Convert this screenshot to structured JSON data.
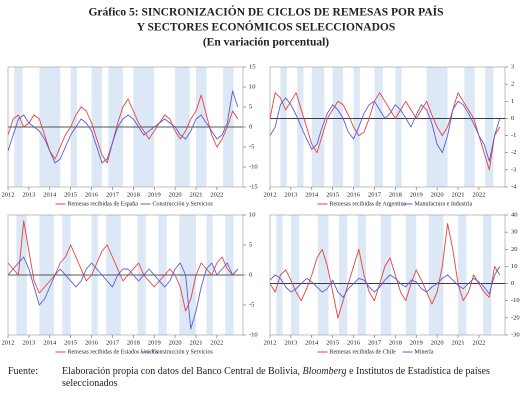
{
  "title": [
    "Gráfico 5: SINCRONIZACIÓN DE CICLOS DE REMESAS POR PAÍS",
    "Y SECTORES ECONÓMICOS SELECCIONADOS",
    "(En variación porcentual)"
  ],
  "chart_data": [
    {
      "type": "line",
      "x": [
        2012,
        2012.25,
        2012.5,
        2012.75,
        2013,
        2013.25,
        2013.5,
        2013.75,
        2014,
        2014.25,
        2014.5,
        2014.75,
        2015,
        2015.25,
        2015.5,
        2015.75,
        2016,
        2016.25,
        2016.5,
        2016.75,
        2017,
        2017.25,
        2017.5,
        2017.75,
        2018,
        2018.25,
        2018.5,
        2018.75,
        2019,
        2019.25,
        2019.5,
        2019.75,
        2020,
        2020.25,
        2020.5,
        2020.75,
        2021,
        2021.25,
        2021.5,
        2021.75,
        2022,
        2022.25,
        2022.5,
        2022.75,
        2023
      ],
      "series": [
        {
          "name": "Remesas recibidas de España",
          "color": "#e8413c",
          "values": [
            -2,
            2,
            3,
            0,
            1,
            3,
            2,
            -2,
            -6,
            -8,
            -5,
            -2,
            0,
            3,
            5,
            4,
            1,
            -3,
            -7,
            -9,
            -4,
            1,
            5,
            7,
            4,
            1,
            -1,
            -3,
            -1,
            1,
            3,
            2,
            -1,
            -3,
            -1,
            2,
            4,
            8,
            3,
            -2,
            -5,
            -3,
            0,
            4,
            2
          ]
        },
        {
          "name": "Construcción y Servicios",
          "color": "#5b5bd6",
          "values": [
            -6,
            -2,
            2,
            3,
            1,
            0,
            -1,
            -3,
            -6,
            -9,
            -8,
            -5,
            -2,
            0,
            2,
            1,
            -1,
            -5,
            -9,
            -8,
            -4,
            0,
            2,
            3,
            2,
            0,
            -2,
            -1,
            0,
            1,
            2,
            1,
            0,
            -2,
            -3,
            -1,
            2,
            3,
            1,
            -1,
            -3,
            -2,
            1,
            9,
            5
          ]
        }
      ],
      "shaded_periods": [
        [
          2012.3,
          2012.7
        ],
        [
          2013.5,
          2014.5
        ],
        [
          2015,
          2015.3
        ],
        [
          2016,
          2016.5
        ],
        [
          2016.8,
          2017.5
        ],
        [
          2018,
          2019
        ],
        [
          2020,
          2020.7
        ],
        [
          2021,
          2021.5
        ],
        [
          2022.3,
          2022.8
        ]
      ],
      "xlim": [
        2012,
        2023.25
      ],
      "xticks": [
        2012,
        2013,
        2014,
        2015,
        2016,
        2017,
        2018,
        2019,
        2020,
        2021,
        2022
      ],
      "ylim": [
        -15,
        15
      ],
      "yticks": [
        15,
        10,
        5,
        0,
        -5,
        -10,
        -15
      ]
    },
    {
      "type": "line",
      "x": [
        2012,
        2012.25,
        2012.5,
        2012.75,
        2013,
        2013.25,
        2013.5,
        2013.75,
        2014,
        2014.25,
        2014.5,
        2014.75,
        2015,
        2015.25,
        2015.5,
        2015.75,
        2016,
        2016.25,
        2016.5,
        2016.75,
        2017,
        2017.25,
        2017.5,
        2017.75,
        2018,
        2018.25,
        2018.5,
        2018.75,
        2019,
        2019.25,
        2019.5,
        2019.75,
        2020,
        2020.25,
        2020.5,
        2020.75,
        2021,
        2021.25,
        2021.5,
        2021.75,
        2022,
        2022.25,
        2022.5,
        2022.75,
        2023
      ],
      "series": [
        {
          "name": "Remesas recibidas de Argentina",
          "color": "#e8413c",
          "values": [
            0,
            1.5,
            1.2,
            0.5,
            1,
            1.5,
            0.5,
            -0.5,
            -1.5,
            -2,
            -1,
            0,
            0.5,
            1,
            0.8,
            0.2,
            -0.5,
            -1,
            -0.8,
            0,
            1,
            1.5,
            1,
            0.5,
            0,
            0.5,
            1,
            0.5,
            0,
            0.5,
            1,
            0.2,
            -0.5,
            -1,
            -0.5,
            0.5,
            1.5,
            1,
            0.5,
            0,
            -1,
            -2,
            -3,
            -1,
            -0.5
          ]
        },
        {
          "name": "Manufactura e Industria",
          "color": "#5b5bd6",
          "values": [
            -1,
            -0.5,
            0.8,
            1.2,
            0.8,
            0.2,
            -0.5,
            -1.2,
            -1.8,
            -1.5,
            -0.5,
            0.3,
            0.8,
            0.5,
            0,
            -0.8,
            -1.2,
            -0.5,
            0.3,
            0.8,
            1,
            0.5,
            0,
            0.3,
            0.8,
            0.5,
            0,
            -0.5,
            0.2,
            0.8,
            0.5,
            -0.3,
            -1.5,
            -2,
            -1,
            0.5,
            1,
            0.8,
            0.3,
            -0.3,
            -1,
            -1.5,
            -2.5,
            -1,
            0
          ]
        }
      ],
      "shaded_periods": [
        [
          2012.5,
          2012.8
        ],
        [
          2013.3,
          2013.6
        ],
        [
          2014,
          2014.6
        ],
        [
          2015,
          2015.5
        ],
        [
          2016,
          2016.3
        ],
        [
          2017,
          2017.4
        ],
        [
          2018,
          2018.3
        ],
        [
          2019.5,
          2020.5
        ],
        [
          2021.3,
          2021.8
        ],
        [
          2022.3,
          2022.7
        ]
      ],
      "xlim": [
        2012,
        2023.25
      ],
      "xticks": [
        2012,
        2013,
        2014,
        2015,
        2016,
        2017,
        2018,
        2019,
        2020,
        2021,
        2022
      ],
      "ylim": [
        -4,
        3
      ],
      "yticks": [
        3,
        2,
        1,
        0,
        -1,
        -2,
        -3,
        -4
      ]
    },
    {
      "type": "line",
      "x": [
        2012,
        2012.25,
        2012.5,
        2012.75,
        2013,
        2013.25,
        2013.5,
        2013.75,
        2014,
        2014.25,
        2014.5,
        2014.75,
        2015,
        2015.25,
        2015.5,
        2015.75,
        2016,
        2016.25,
        2016.5,
        2016.75,
        2017,
        2017.25,
        2017.5,
        2017.75,
        2018,
        2018.25,
        2018.5,
        2018.75,
        2019,
        2019.25,
        2019.5,
        2019.75,
        2020,
        2020.25,
        2020.5,
        2020.75,
        2021,
        2021.25,
        2021.5,
        2021.75,
        2022,
        2022.25,
        2022.5,
        2022.75,
        2023
      ],
      "series": [
        {
          "name": "Remesas recibidas de Estados Unidos",
          "color": "#e8413c",
          "values": [
            2,
            1,
            0,
            9,
            4,
            -1,
            -3,
            -2,
            -1,
            0,
            2,
            3,
            5,
            3,
            1,
            -1,
            0,
            2,
            4,
            5,
            3,
            1,
            -1,
            0,
            1,
            2,
            0,
            -1,
            -2,
            -1,
            0,
            1,
            0,
            -2,
            -6,
            -4,
            0,
            2,
            1,
            0,
            2,
            3,
            1,
            0,
            1
          ]
        },
        {
          "name": "Construcción y Servicios",
          "color": "#5b5bd6",
          "values": [
            0,
            1,
            2,
            3,
            1,
            -2,
            -5,
            -4,
            -2,
            0,
            1,
            0,
            -1,
            -2,
            -1,
            1,
            2,
            1,
            0,
            -1,
            -2,
            0,
            1,
            1,
            0,
            -1,
            0,
            1,
            0,
            -1,
            -2,
            -1,
            1,
            2,
            0,
            -9,
            -6,
            -2,
            1,
            2,
            0,
            1,
            2,
            0,
            1
          ]
        }
      ],
      "shaded_periods": [
        [
          2012.4,
          2012.9
        ],
        [
          2013.5,
          2014.2
        ],
        [
          2014.6,
          2015
        ],
        [
          2016,
          2016.3
        ],
        [
          2016.7,
          2017.4
        ],
        [
          2018.2,
          2018.6
        ],
        [
          2019.2,
          2019.6
        ],
        [
          2020.2,
          2021
        ],
        [
          2021.5,
          2021.8
        ],
        [
          2022.4,
          2022.8
        ]
      ],
      "xlim": [
        2012,
        2023.25
      ],
      "xticks": [
        2012,
        2013,
        2014,
        2015,
        2016,
        2017,
        2018,
        2019,
        2020,
        2021,
        2022
      ],
      "ylim": [
        -10,
        10
      ],
      "yticks": [
        10,
        5,
        0,
        -5,
        -10
      ]
    },
    {
      "type": "line",
      "x": [
        2012,
        2012.25,
        2012.5,
        2012.75,
        2013,
        2013.25,
        2013.5,
        2013.75,
        2014,
        2014.25,
        2014.5,
        2014.75,
        2015,
        2015.25,
        2015.5,
        2015.75,
        2016,
        2016.25,
        2016.5,
        2016.75,
        2017,
        2017.25,
        2017.5,
        2017.75,
        2018,
        2018.25,
        2018.5,
        2018.75,
        2019,
        2019.25,
        2019.5,
        2019.75,
        2020,
        2020.25,
        2020.5,
        2020.75,
        2021,
        2021.25,
        2021.5,
        2021.75,
        2022,
        2022.25,
        2022.5,
        2022.75,
        2023
      ],
      "series": [
        {
          "name": "Remesas recibidas de Chile",
          "color": "#e8413c",
          "values": [
            0,
            -5,
            5,
            8,
            2,
            -5,
            -10,
            -3,
            5,
            15,
            20,
            10,
            -5,
            -20,
            -10,
            0,
            10,
            20,
            5,
            -5,
            -10,
            0,
            10,
            15,
            5,
            -5,
            -10,
            0,
            8,
            2,
            -5,
            -12,
            -5,
            10,
            35,
            20,
            0,
            -10,
            -5,
            5,
            0,
            -5,
            -8,
            10,
            5
          ]
        },
        {
          "name": "Minería",
          "color": "#5b5bd6",
          "values": [
            2,
            5,
            3,
            -2,
            -5,
            -3,
            0,
            3,
            1,
            -2,
            -5,
            -3,
            2,
            -5,
            -8,
            -3,
            0,
            3,
            2,
            -2,
            -5,
            -2,
            2,
            5,
            3,
            0,
            -2,
            2,
            1,
            -3,
            -5,
            -2,
            0,
            3,
            5,
            2,
            -1,
            -3,
            0,
            3,
            1,
            -2,
            -6,
            5,
            10
          ]
        }
      ],
      "shaded_periods": [
        [
          2012.3,
          2012.6
        ],
        [
          2013,
          2013.4
        ],
        [
          2014.3,
          2014.8
        ],
        [
          2015.3,
          2015.7
        ],
        [
          2016.2,
          2016.6
        ],
        [
          2017.3,
          2017.8
        ],
        [
          2018.5,
          2019
        ],
        [
          2019.6,
          2020.3
        ],
        [
          2021,
          2021.4
        ],
        [
          2022.2,
          2022.6
        ]
      ],
      "xlim": [
        2012,
        2023.25
      ],
      "xticks": [
        2012,
        2013,
        2014,
        2015,
        2016,
        2017,
        2018,
        2019,
        2020,
        2021,
        2022
      ],
      "ylim": [
        -30,
        40
      ],
      "yticks": [
        40,
        30,
        20,
        10,
        0,
        -10,
        -20,
        -30
      ]
    }
  ],
  "source": {
    "label": "Fuente:",
    "text": [
      "Elaboración propia con datos del Banco Central de Bolivia, ",
      "Bloomberg",
      " e Institutos de Estadística de países seleccionados"
    ]
  }
}
